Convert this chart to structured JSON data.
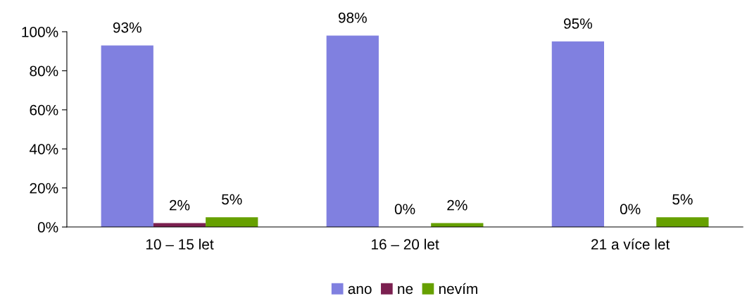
{
  "chart_data": {
    "type": "bar",
    "categories": [
      "10 – 15 let",
      "16 – 20 let",
      "21 a více let"
    ],
    "series": [
      {
        "name": "ano",
        "color": "#8080e0",
        "values": [
          93,
          98,
          95
        ],
        "value_labels": [
          "93%",
          "98%",
          "95%"
        ]
      },
      {
        "name": "ne",
        "color": "#7b2050",
        "values": [
          2,
          0,
          0
        ],
        "value_labels": [
          "2%",
          "0%",
          "0%"
        ]
      },
      {
        "name": "nevím",
        "color": "#66a000",
        "values": [
          5,
          2,
          5
        ],
        "value_labels": [
          "5%",
          "2%",
          "5%"
        ]
      }
    ],
    "ylim": [
      0,
      100
    ],
    "yticks": [
      {
        "value": 0,
        "label": "0%"
      },
      {
        "value": 20,
        "label": "20%"
      },
      {
        "value": 40,
        "label": "40%"
      },
      {
        "value": 60,
        "label": "60%"
      },
      {
        "value": 80,
        "label": "80%"
      },
      {
        "value": 100,
        "label": "100%"
      }
    ],
    "grid": false,
    "legend": "bottom"
  }
}
